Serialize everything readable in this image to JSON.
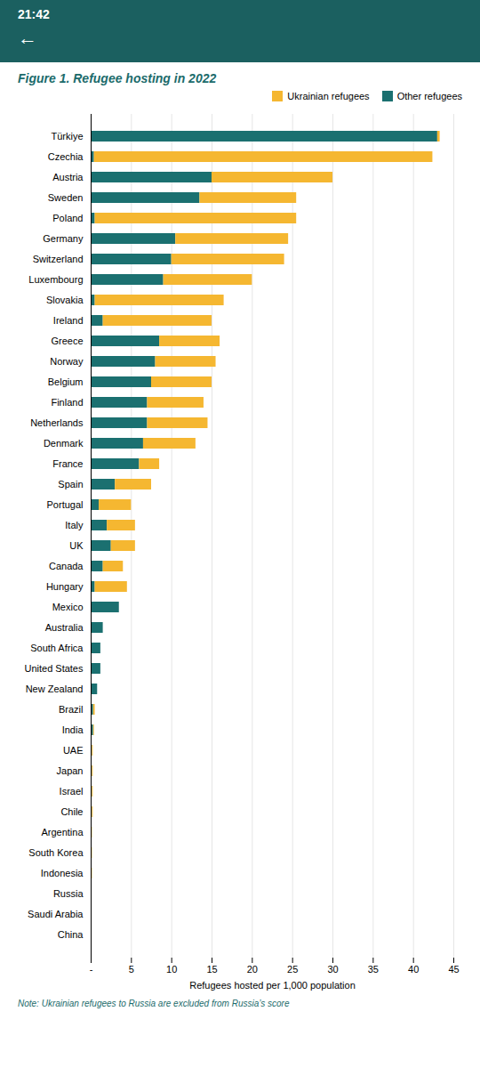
{
  "chart_data": {
    "type": "bar",
    "orientation": "horizontal",
    "stacked": true,
    "title": "Figure 1. Refugee hosting in 2022",
    "xlabel": "Refugees hosted per 1,000 population",
    "annotations": [
      "21:42",
      "←",
      "Note: Ukrainian refugees to Russia are excluded from Russia’s score"
    ],
    "categories": [
      "Türkiye",
      "Czechia",
      "Austria",
      "Sweden",
      "Poland",
      "Germany",
      "Switzerland",
      "Luxembourg",
      "Slovakia",
      "Ireland",
      "Greece",
      "Norway",
      "Belgium",
      "Finland",
      "Netherlands",
      "Denmark",
      "France",
      "Spain",
      "Portugal",
      "Italy",
      "UK",
      "Canada",
      "Hungary",
      "Mexico",
      "Australia",
      "South Africa",
      "United States",
      "New Zealand",
      "Brazil",
      "India",
      "UAE",
      "Japan",
      "Israel",
      "Chile",
      "Argentina",
      "South Korea",
      "Indonesia",
      "Russia",
      "Saudi Arabia",
      "China"
    ],
    "series": [
      {
        "name": "Other refugees",
        "color": "#1B7070",
        "values": [
          43.0,
          0.4,
          15.0,
          13.5,
          0.5,
          10.5,
          10.0,
          9.0,
          0.5,
          1.5,
          8.5,
          8.0,
          7.5,
          7.0,
          7.0,
          6.5,
          6.0,
          3.0,
          1.0,
          2.0,
          2.5,
          1.5,
          0.5,
          3.5,
          1.5,
          1.2,
          1.2,
          0.8,
          0.3,
          0.3,
          0.15,
          0.15,
          0.15,
          0.15,
          0.1,
          0.1,
          0.1,
          0.1,
          0.05,
          0.05
        ]
      },
      {
        "name": "Ukrainian refugees",
        "color": "#F5B731",
        "values": [
          0.3,
          42.0,
          15.0,
          12.0,
          25.0,
          14.0,
          14.0,
          11.0,
          16.0,
          13.5,
          7.5,
          7.5,
          7.5,
          7.0,
          7.5,
          6.5,
          2.5,
          4.5,
          4.0,
          3.5,
          3.0,
          2.5,
          4.0,
          0.0,
          0.0,
          0.0,
          0.0,
          0.0,
          0.2,
          0.1,
          0.1,
          0.1,
          0.1,
          0.1,
          0.05,
          0.05,
          0.05,
          0.0,
          0.0,
          0.0
        ]
      }
    ],
    "xlim": [
      0,
      45
    ],
    "xticks": [
      {
        "value": 0,
        "label": "-"
      },
      5,
      10,
      15,
      20,
      25,
      30,
      35,
      40,
      45
    ],
    "grid": true,
    "legend": "right"
  }
}
